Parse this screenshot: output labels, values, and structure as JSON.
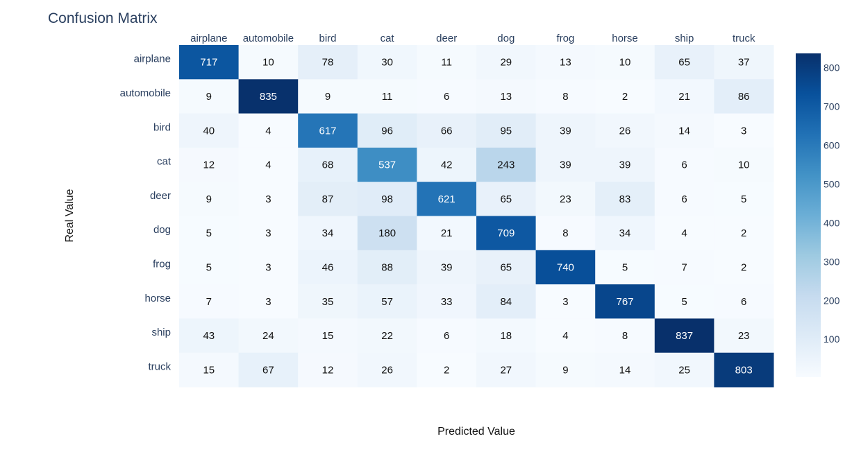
{
  "chart_data": {
    "type": "heatmap",
    "title": "Confusion Matrix",
    "xlabel": "Predicted Value",
    "ylabel": "Real Value",
    "x_categories": [
      "airplane",
      "automobile",
      "bird",
      "cat",
      "deer",
      "dog",
      "frog",
      "horse",
      "ship",
      "truck"
    ],
    "y_categories": [
      "airplane",
      "automobile",
      "bird",
      "cat",
      "deer",
      "dog",
      "frog",
      "horse",
      "ship",
      "truck"
    ],
    "values": [
      [
        717,
        10,
        78,
        30,
        11,
        29,
        13,
        10,
        65,
        37
      ],
      [
        9,
        835,
        9,
        11,
        6,
        13,
        8,
        2,
        21,
        86
      ],
      [
        40,
        4,
        617,
        96,
        66,
        95,
        39,
        26,
        14,
        3
      ],
      [
        12,
        4,
        68,
        537,
        42,
        243,
        39,
        39,
        6,
        10
      ],
      [
        9,
        3,
        87,
        98,
        621,
        65,
        23,
        83,
        6,
        5
      ],
      [
        5,
        3,
        34,
        180,
        21,
        709,
        8,
        34,
        4,
        2
      ],
      [
        5,
        3,
        46,
        88,
        39,
        65,
        740,
        5,
        7,
        2
      ],
      [
        7,
        3,
        35,
        57,
        33,
        84,
        3,
        767,
        5,
        6
      ],
      [
        43,
        24,
        15,
        22,
        6,
        18,
        4,
        8,
        837,
        23
      ],
      [
        15,
        67,
        12,
        26,
        2,
        27,
        9,
        14,
        25,
        803
      ]
    ],
    "colorscale": "Blues",
    "zmin": 2,
    "zmax": 837,
    "colorbar_ticks": [
      100,
      200,
      300,
      400,
      500,
      600,
      700,
      800
    ],
    "x_axis_side": "top"
  }
}
